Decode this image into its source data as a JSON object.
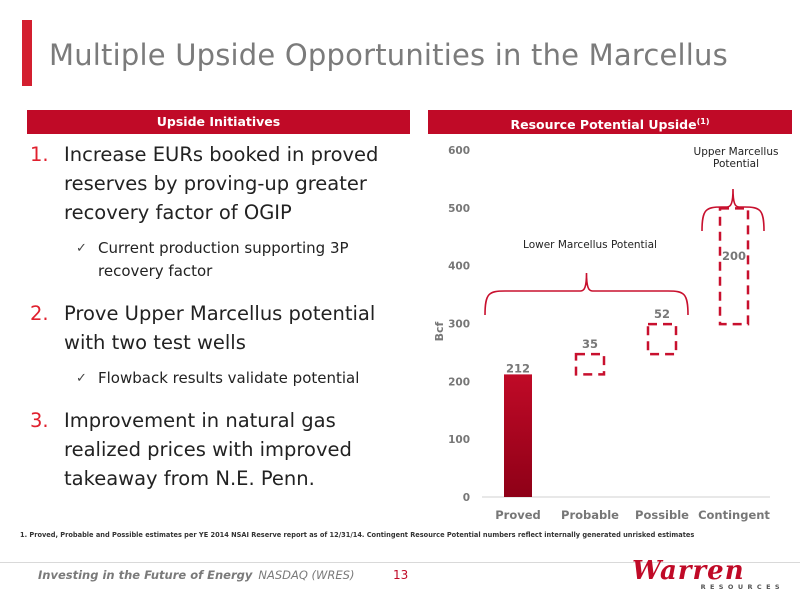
{
  "title": "Multiple Upside Opportunities in the Marcellus",
  "left_header": "Upside Initiatives",
  "right_header": {
    "text": "Resource Potential Upside",
    "superscript": "(1)"
  },
  "initiatives": [
    {
      "number": "1.",
      "text": "Increase EURs booked in proved reserves by proving-up greater recovery factor of OGIP",
      "sub": "Current production supporting 3P recovery factor"
    },
    {
      "number": "2.",
      "text": "Prove Upper Marcellus potential with two test wells",
      "sub": "Flowback results validate potential"
    },
    {
      "number": "3.",
      "text": "Improvement in natural gas realized prices with improved takeaway from N.E. Penn.",
      "sub": null
    }
  ],
  "chart_data": {
    "type": "bar",
    "ylabel": "Bcf",
    "ylim": [
      0,
      600
    ],
    "yticks": [
      "0",
      "100",
      "200",
      "300",
      "400",
      "500",
      "600"
    ],
    "categories": [
      "Proved",
      "Probable",
      "Possible",
      "Contingent"
    ],
    "values": [
      212,
      35,
      52,
      200
    ],
    "bases": [
      0,
      212,
      247,
      299
    ],
    "data_labels": [
      "212",
      "35",
      "52",
      "200"
    ],
    "styles": [
      "solid",
      "dashed",
      "dashed",
      "dashed"
    ],
    "annotations": [
      {
        "text": "Lower Marcellus Potential",
        "spans": [
          "Proved",
          "Possible"
        ]
      },
      {
        "text_lines": [
          "Upper Marcellus",
          "Potential"
        ],
        "spans": [
          "Contingent"
        ]
      }
    ],
    "colors": {
      "bar": "#c00a27",
      "bar_dark": "#8e0017",
      "dash": "#c8102e",
      "axis_text": "#777777"
    }
  },
  "footnote": "1. Proved, Probable and Possible estimates per YE 2014 NSAI Reserve report as of 12/31/14. Contingent Resource Potential numbers reflect internally generated unrisked estimates",
  "footer": {
    "tagline": "Investing in the Future of Energy",
    "ticker": "NASDAQ (WRES)",
    "page": "13"
  },
  "logo": {
    "name": "Warren",
    "sub": "RESOURCES"
  }
}
